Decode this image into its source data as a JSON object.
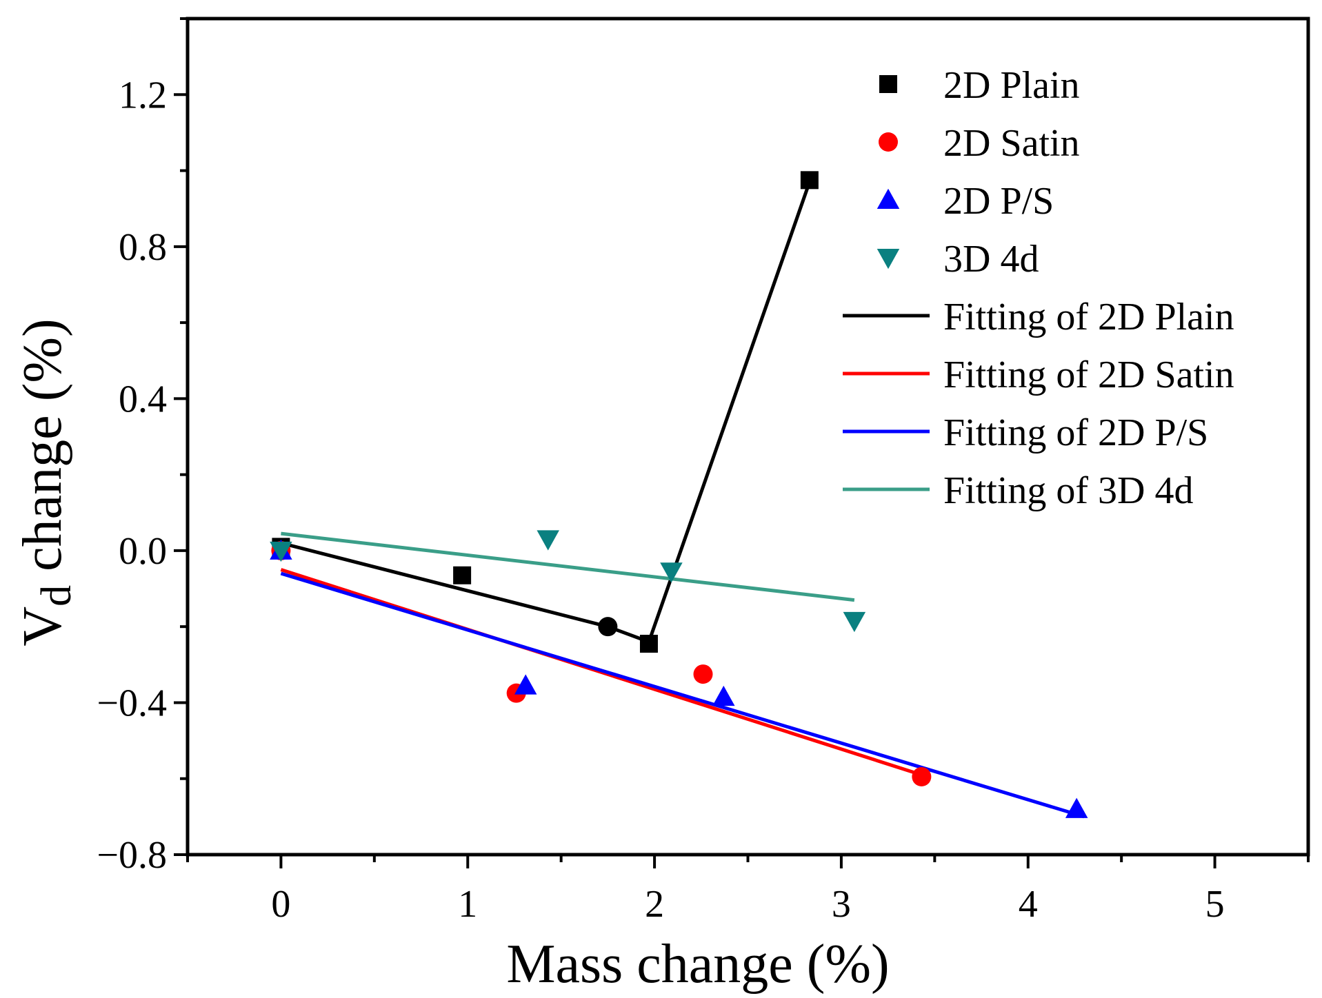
{
  "chart_data": {
    "type": "scatter",
    "title": "",
    "xlabel": "Mass change (%)",
    "ylabel_main": "V",
    "ylabel_sub": "d",
    "ylabel_rest": " change (%)",
    "xlim": [
      -0.5,
      5.5
    ],
    "ylim": [
      -0.8,
      1.4
    ],
    "x_ticks": [
      0,
      1,
      2,
      3,
      4,
      5
    ],
    "x_tick_labels": [
      "0",
      "1",
      "2",
      "3",
      "4",
      "5"
    ],
    "y_ticks": [
      -0.8,
      -0.4,
      0.0,
      0.4,
      0.8,
      1.2
    ],
    "y_tick_labels": [
      "−0.8",
      "−0.4",
      "0.0",
      "0.4",
      "0.8",
      "1.2"
    ],
    "grid": false,
    "legend_position": "top-right",
    "series": [
      {
        "name": "2D Plain",
        "marker": "square",
        "color": "#000000",
        "x": [
          0.0,
          0.97,
          1.97,
          2.83
        ],
        "y": [
          0.01,
          -0.065,
          -0.245,
          0.975
        ]
      },
      {
        "name": "2D Satin",
        "marker": "circle",
        "color": "#ff0000",
        "x": [
          0.0,
          1.26,
          2.26,
          3.43
        ],
        "y": [
          0.0,
          -0.375,
          -0.325,
          -0.595
        ]
      },
      {
        "name": "2D P/S",
        "marker": "triangle-up",
        "color": "#0000ff",
        "x": [
          0.0,
          1.31,
          2.37,
          4.26
        ],
        "y": [
          0.0,
          -0.355,
          -0.385,
          -0.68
        ]
      },
      {
        "name": "3D 4d",
        "marker": "triangle-down",
        "color": "#0a8080",
        "x": [
          0.0,
          1.43,
          2.09,
          3.07
        ],
        "y": [
          0.0,
          0.03,
          -0.055,
          -0.185
        ]
      }
    ],
    "fits": [
      {
        "name": "Fitting of 2D Plain",
        "color": "#000000",
        "x": [
          0.0,
          1.75,
          1.97,
          2.83
        ],
        "y": [
          0.02,
          -0.2,
          -0.24,
          0.97
        ]
      },
      {
        "name": "Fitting of 2D Satin",
        "color": "#ff0000",
        "x": [
          0.0,
          3.43
        ],
        "y": [
          -0.05,
          -0.59
        ]
      },
      {
        "name": "Fitting of 2D P/S",
        "color": "#0000ff",
        "x": [
          0.0,
          4.3
        ],
        "y": [
          -0.06,
          -0.7
        ]
      },
      {
        "name": "Fitting of 3D 4d",
        "color": "#3a9e88",
        "x": [
          0.0,
          3.07
        ],
        "y": [
          0.045,
          -0.13
        ]
      }
    ],
    "extra_points": [
      {
        "name": "breakpoint",
        "marker": "circle",
        "color": "#000000",
        "x": 1.75,
        "y": -0.2
      }
    ]
  }
}
